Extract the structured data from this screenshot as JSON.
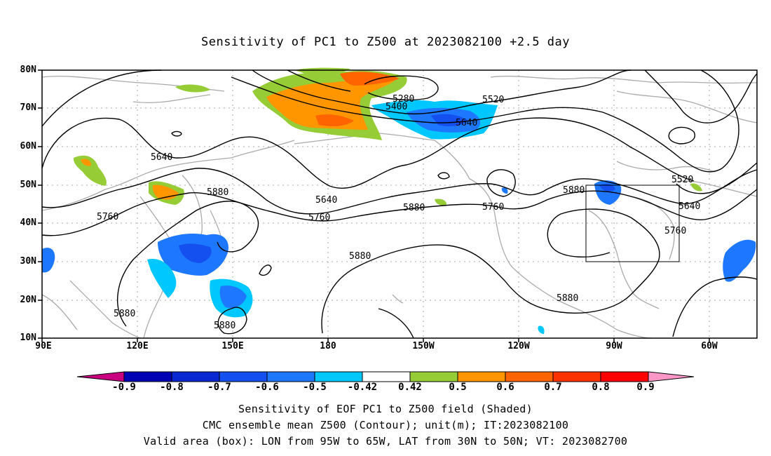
{
  "title": "Sensitivity of PC1 to Z500 at 2023082100 +2.5 day",
  "lat_labels": [
    "80N",
    "70N",
    "60N",
    "50N",
    "40N",
    "30N",
    "20N",
    "10N"
  ],
  "lon_labels": [
    "90E",
    "120E",
    "150E",
    "180",
    "150W",
    "120W",
    "90W",
    "60W"
  ],
  "contour_labels": [
    "5280",
    "5400",
    "5520",
    "5640",
    "5640",
    "5640",
    "5760",
    "5760",
    "5760",
    "5880",
    "5880",
    "5880",
    "5880",
    "5880",
    "5520",
    "5640",
    "5760",
    "5880",
    "5880"
  ],
  "colorbar": {
    "labels": [
      "-0.9",
      "-0.8",
      "-0.7",
      "-0.6",
      "-0.5",
      "-0.42",
      "0.42",
      "0.5",
      "0.6",
      "0.7",
      "0.8",
      "0.9"
    ],
    "colors": [
      "#c8007f",
      "#0000b4",
      "#0a28d2",
      "#1450f0",
      "#1e78ff",
      "#00c8ff",
      "#ffffff",
      "#96cd37",
      "#ff9600",
      "#ff6400",
      "#ff3200",
      "#ff0000",
      "#ff96c8"
    ]
  },
  "valid_box": {
    "lon_west": "95W",
    "lon_east": "65W",
    "lat_south": "30N",
    "lat_north": "50N"
  },
  "captions": [
    "Sensitivity of EOF PC1 to Z500 field (Shaded)",
    "CMC ensemble mean Z500 (Contour); unit(m); IT:2023082100",
    "Valid area (box): LON from 95W to 65W, LAT from 30N to 50N; VT: 2023082700"
  ]
}
